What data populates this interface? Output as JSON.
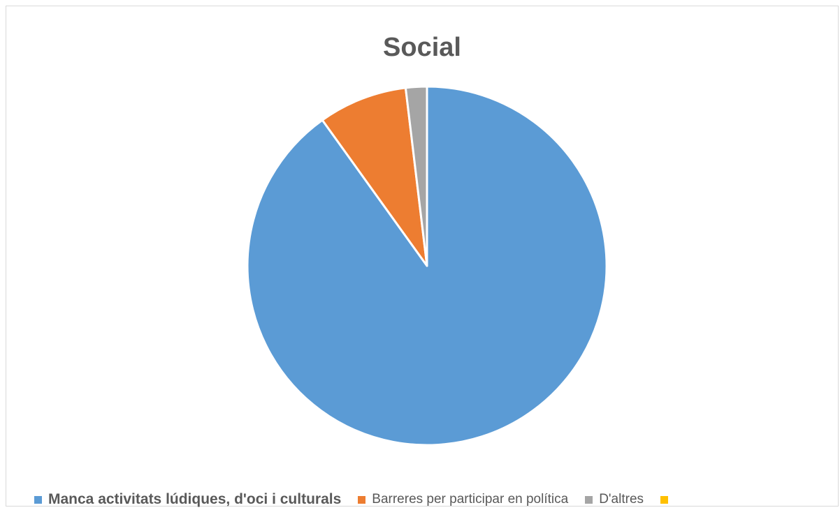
{
  "chart_data": {
    "type": "pie",
    "title": "Social",
    "series": [
      {
        "name": "Social",
        "categories": [
          "Manca activitats lúdiques, d'oci i culturals",
          "Barreres per participar en política",
          "D'altres",
          ""
        ],
        "values": [
          90.1,
          8.0,
          1.9,
          0
        ],
        "colors": [
          "#5b9bd5",
          "#ed7d31",
          "#a5a5a5",
          "#ffc000"
        ]
      }
    ],
    "legend_position": "bottom",
    "legend_bold_index": 0
  }
}
